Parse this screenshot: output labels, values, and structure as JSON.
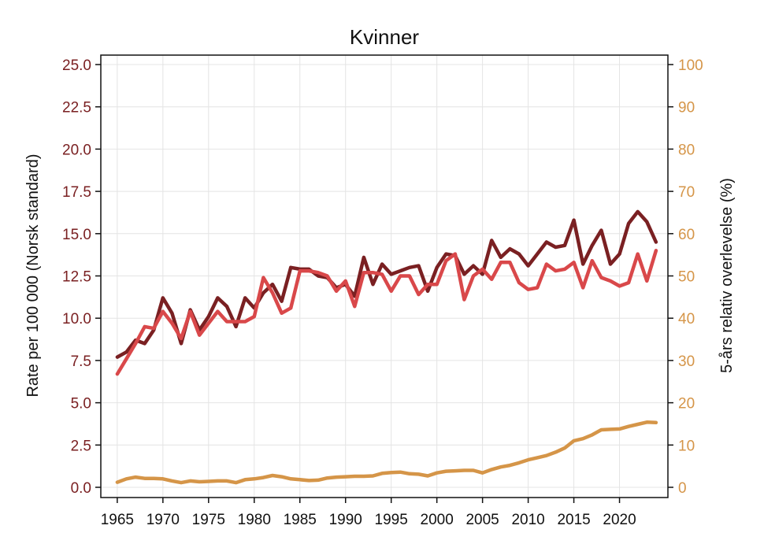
{
  "chart_data": {
    "type": "line",
    "title": "Kvinner",
    "ylabel": "Rate per 100 000 (Norsk standard)",
    "y2label": "5-års relativ overlevelse (%)",
    "ylim": [
      0,
      25
    ],
    "y2lim": [
      0,
      100
    ],
    "yticks": [
      "0.0",
      "2.5",
      "5.0",
      "7.5",
      "10.0",
      "12.5",
      "15.0",
      "17.5",
      "20.0",
      "22.5",
      "25.0"
    ],
    "y2ticks": [
      "0",
      "10",
      "20",
      "30",
      "40",
      "50",
      "60",
      "70",
      "80",
      "90",
      "100"
    ],
    "xticks": [
      "1965",
      "1970",
      "1975",
      "1980",
      "1985",
      "1990",
      "1995",
      "2000",
      "2005",
      "2010",
      "2015",
      "2020"
    ],
    "grid": true,
    "legend": "none",
    "x": [
      1965,
      1966,
      1967,
      1968,
      1969,
      1970,
      1971,
      1972,
      1973,
      1974,
      1975,
      1976,
      1977,
      1978,
      1979,
      1980,
      1981,
      1982,
      1983,
      1984,
      1985,
      1986,
      1987,
      1988,
      1989,
      1990,
      1991,
      1992,
      1993,
      1994,
      1995,
      1996,
      1997,
      1998,
      1999,
      2000,
      2001,
      2002,
      2003,
      2004,
      2005,
      2006,
      2007,
      2008,
      2009,
      2010,
      2011,
      2012,
      2013,
      2014,
      2015,
      2016,
      2017,
      2018,
      2019,
      2020,
      2021,
      2022,
      2023,
      2024
    ],
    "series": [
      {
        "color": "#7a2022",
        "axis": "left",
        "values": [
          7.7,
          8.0,
          8.7,
          8.5,
          9.3,
          11.2,
          10.3,
          8.5,
          10.5,
          9.3,
          10.1,
          11.2,
          10.7,
          9.5,
          11.2,
          10.6,
          11.5,
          12.0,
          11.0,
          13.0,
          12.9,
          12.9,
          12.5,
          12.4,
          11.8,
          12.0,
          11.3,
          13.6,
          12.0,
          13.2,
          12.6,
          12.8,
          13.0,
          13.1,
          11.6,
          13.0,
          13.8,
          13.7,
          12.6,
          13.1,
          12.6,
          14.6,
          13.6,
          14.1,
          13.8,
          13.1,
          13.8,
          14.5,
          14.2,
          14.3,
          15.8,
          13.2,
          14.3,
          15.2,
          13.2,
          13.8,
          15.6,
          16.3,
          15.7,
          14.5
        ]
      },
      {
        "color": "#d9484a",
        "axis": "left",
        "values": [
          6.7,
          7.6,
          8.5,
          9.5,
          9.4,
          10.4,
          9.7,
          8.8,
          10.4,
          9.0,
          9.7,
          10.4,
          9.8,
          9.8,
          9.8,
          10.1,
          12.4,
          11.5,
          10.3,
          10.6,
          12.8,
          12.8,
          12.7,
          12.5,
          11.6,
          12.2,
          10.7,
          12.7,
          12.7,
          12.6,
          11.6,
          12.5,
          12.5,
          11.4,
          12.0,
          12.0,
          13.4,
          13.8,
          11.1,
          12.5,
          12.9,
          12.3,
          13.3,
          13.3,
          12.1,
          11.7,
          11.8,
          13.2,
          12.8,
          12.9,
          13.3,
          11.8,
          13.4,
          12.4,
          12.2,
          11.9,
          12.1,
          13.8,
          12.2,
          14.0
        ]
      },
      {
        "color": "#d59548",
        "axis": "right",
        "values": [
          1.2,
          2.0,
          2.4,
          2.1,
          2.1,
          2.0,
          1.5,
          1.1,
          1.5,
          1.3,
          1.4,
          1.5,
          1.5,
          1.1,
          1.8,
          2.0,
          2.3,
          2.8,
          2.5,
          2.0,
          1.8,
          1.6,
          1.7,
          2.2,
          2.4,
          2.5,
          2.6,
          2.6,
          2.7,
          3.3,
          3.5,
          3.6,
          3.2,
          3.1,
          2.7,
          3.4,
          3.8,
          3.9,
          4.0,
          4.0,
          3.4,
          4.2,
          4.8,
          5.2,
          5.8,
          6.5,
          7.0,
          7.5,
          8.3,
          9.3,
          11.0,
          11.5,
          12.4,
          13.6,
          13.7,
          13.8,
          14.4,
          14.9,
          15.4,
          15.3
        ]
      }
    ]
  },
  "colors": {
    "left_axis": "#7a2022",
    "right_axis": "#d59548",
    "grid": "#e4e4e4",
    "frame": "#111111"
  }
}
